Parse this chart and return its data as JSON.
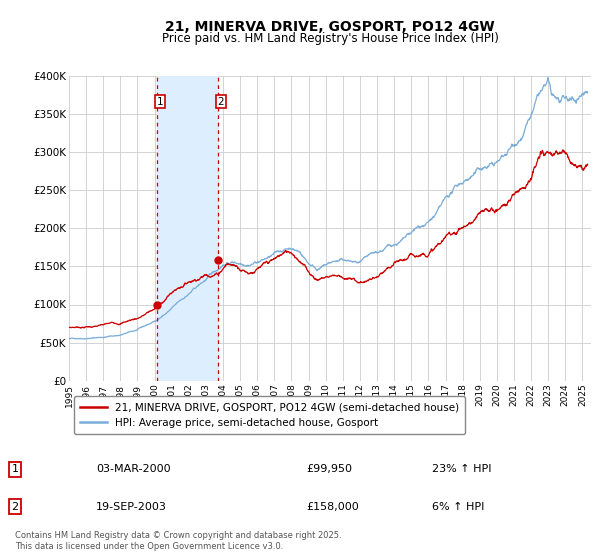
{
  "title": "21, MINERVA DRIVE, GOSPORT, PO12 4GW",
  "subtitle": "Price paid vs. HM Land Registry's House Price Index (HPI)",
  "legend_property": "21, MINERVA DRIVE, GOSPORT, PO12 4GW (semi-detached house)",
  "legend_hpi": "HPI: Average price, semi-detached house, Gosport",
  "footnote": "Contains HM Land Registry data © Crown copyright and database right 2025.\nThis data is licensed under the Open Government Licence v3.0.",
  "transaction1_date": "03-MAR-2000",
  "transaction1_price": "£99,950",
  "transaction1_hpi": "23% ↑ HPI",
  "transaction2_date": "19-SEP-2003",
  "transaction2_price": "£158,000",
  "transaction2_hpi": "6% ↑ HPI",
  "property_color": "#cc0000",
  "hpi_color": "#7aadda",
  "shading_color": "#ddeeff",
  "vline_color": "#cc0000",
  "marker1_x": 2000.17,
  "marker1_y": 99950,
  "marker2_x": 2003.72,
  "marker2_y": 158000,
  "vline1_x": 2000.17,
  "vline2_x": 2003.72,
  "xmin": 1995.0,
  "xmax": 2025.5,
  "ymin": 0,
  "ymax": 400000,
  "yticks": [
    0,
    50000,
    100000,
    150000,
    200000,
    250000,
    300000,
    350000,
    400000
  ],
  "ytick_labels": [
    "£0",
    "£50K",
    "£100K",
    "£150K",
    "£200K",
    "£250K",
    "£300K",
    "£350K",
    "£400K"
  ],
  "xticks": [
    1995,
    1996,
    1997,
    1998,
    1999,
    2000,
    2001,
    2002,
    2003,
    2004,
    2005,
    2006,
    2007,
    2008,
    2009,
    2010,
    2011,
    2012,
    2013,
    2014,
    2015,
    2016,
    2017,
    2018,
    2019,
    2020,
    2021,
    2022,
    2023,
    2024,
    2025
  ],
  "background_color": "#ffffff",
  "plot_bg_color": "#ffffff",
  "grid_color": "#cccccc"
}
